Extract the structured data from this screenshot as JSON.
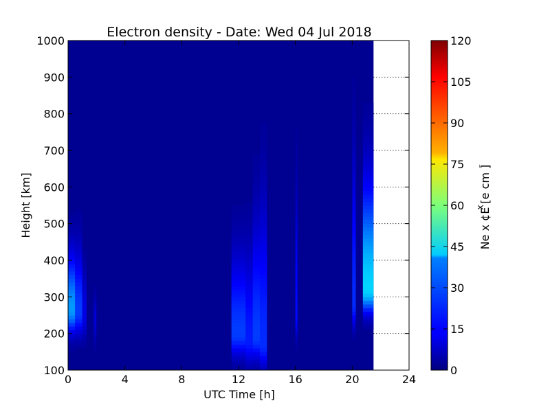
{
  "chart_data": {
    "type": "heatmap",
    "title": "Electron density - Date: Wed 04 Jul 2018",
    "xlabel": "UTC Time [h]",
    "ylabel": "Height [km]",
    "xlim": [
      0,
      24
    ],
    "ylim": [
      100,
      1000
    ],
    "x_ticks": [
      "0",
      "4",
      "8",
      "12",
      "16",
      "20",
      "24"
    ],
    "y_ticks": [
      "100",
      "200",
      "300",
      "400",
      "500",
      "600",
      "700",
      "800",
      "900",
      "1000"
    ],
    "data_end_hour": 21.5,
    "colorbar": {
      "label": "Ne x ¢E  [e cm  ]",
      "label_superscript_1": "X",
      "label_superscript_2": "⁻",
      "range": [
        0,
        120
      ],
      "ticks": [
        "0",
        "15",
        "30",
        "45",
        "60",
        "75",
        "90",
        "105",
        "120"
      ],
      "colormap": "jet"
    },
    "background_value": 2,
    "features": [
      {
        "t_start": 0.0,
        "t_end": 0.5,
        "peak_height": 265,
        "peak_value": 33,
        "top_height": 480
      },
      {
        "t_start": 0.5,
        "t_end": 1.0,
        "peak_height": 260,
        "peak_value": 22,
        "top_height": 500
      },
      {
        "t_start": 1.0,
        "t_end": 1.3,
        "peak_height": 250,
        "peak_value": 12,
        "top_height": 430
      },
      {
        "t_start": 1.8,
        "t_end": 2.0,
        "peak_height": 240,
        "peak_value": 10,
        "top_height": 330
      },
      {
        "t_start": 11.5,
        "t_end": 12.5,
        "peak_height": 200,
        "peak_value": 22,
        "top_height": 500
      },
      {
        "t_start": 12.5,
        "t_end": 13.0,
        "peak_height": 180,
        "peak_value": 18,
        "top_height": 520
      },
      {
        "t_start": 13.0,
        "t_end": 13.5,
        "peak_height": 190,
        "peak_value": 22,
        "top_height": 620
      },
      {
        "t_start": 13.5,
        "t_end": 14.0,
        "peak_height": 170,
        "peak_value": 20,
        "top_height": 700
      },
      {
        "t_start": 16.0,
        "t_end": 16.15,
        "peak_height": 250,
        "peak_value": 16,
        "top_height": 720
      },
      {
        "t_start": 20.0,
        "t_end": 20.25,
        "peak_height": 280,
        "peak_value": 20,
        "top_height": 820
      },
      {
        "t_start": 20.75,
        "t_end": 21.5,
        "peak_height": 320,
        "peak_value": 40,
        "top_height": 720
      }
    ]
  }
}
